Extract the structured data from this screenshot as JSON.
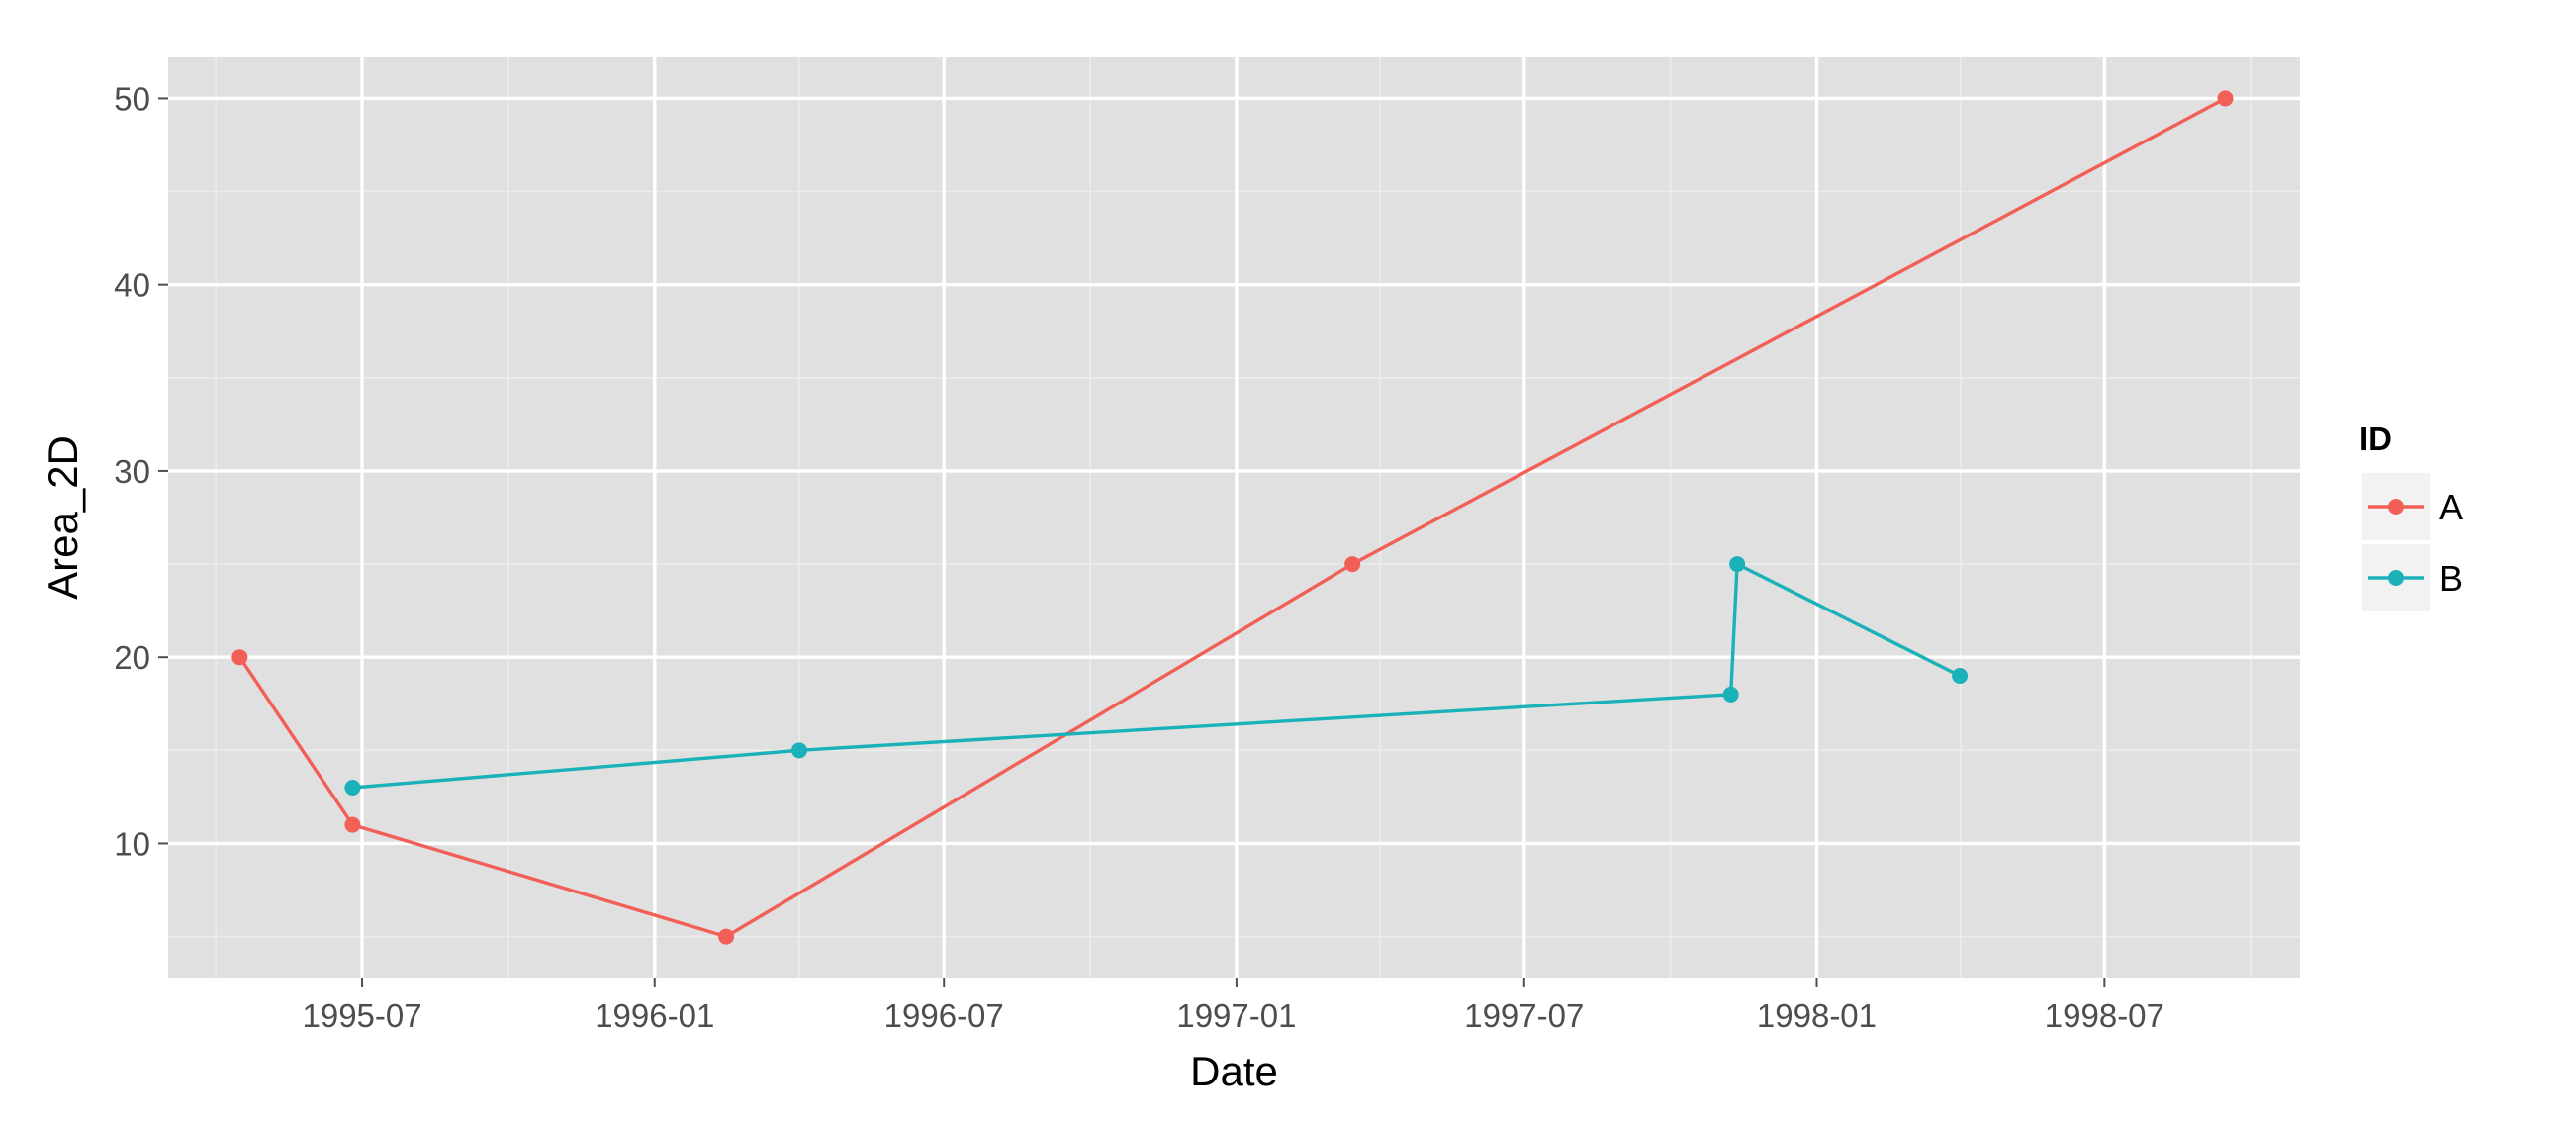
{
  "chart_data": {
    "type": "line",
    "title": "",
    "xlabel": "Date",
    "ylabel": "Area_2D",
    "x_type": "date",
    "xlim": [
      "1995-03-01",
      "1998-11-01"
    ],
    "ylim": [
      2.8,
      52.2
    ],
    "x_ticks": [
      {
        "value": "1995-07-01",
        "label": "1995-07"
      },
      {
        "value": "1996-01-01",
        "label": "1996-01"
      },
      {
        "value": "1996-07-01",
        "label": "1996-07"
      },
      {
        "value": "1997-01-01",
        "label": "1997-01"
      },
      {
        "value": "1997-07-01",
        "label": "1997-07"
      },
      {
        "value": "1998-01-01",
        "label": "1998-01"
      },
      {
        "value": "1998-07-01",
        "label": "1998-07"
      }
    ],
    "y_ticks": [
      10,
      20,
      30,
      40,
      50
    ],
    "grid": true,
    "legend": {
      "title": "ID",
      "position": "right"
    },
    "background": "#e0e0e0",
    "series": [
      {
        "name": "A",
        "color": "#f15f57",
        "points": [
          {
            "x": "1995-04-15",
            "y": 20
          },
          {
            "x": "1995-06-25",
            "y": 11
          },
          {
            "x": "1996-02-15",
            "y": 5
          },
          {
            "x": "1997-03-15",
            "y": 25
          },
          {
            "x": "1998-09-15",
            "y": 50
          }
        ]
      },
      {
        "name": "B",
        "color": "#1ab2b8",
        "points": [
          {
            "x": "1995-06-25",
            "y": 13
          },
          {
            "x": "1996-04-01",
            "y": 15
          },
          {
            "x": "1997-11-08",
            "y": 18
          },
          {
            "x": "1997-11-12",
            "y": 25
          },
          {
            "x": "1998-04-01",
            "y": 19
          }
        ]
      }
    ]
  }
}
